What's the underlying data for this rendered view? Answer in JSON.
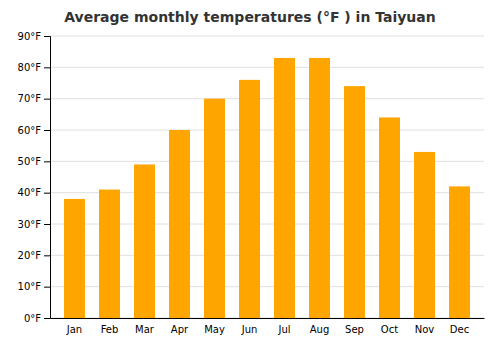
{
  "chart_data": {
    "type": "bar",
    "title": "Average monthly temperatures (°F ) in Taiyuan",
    "categories": [
      "Jan",
      "Feb",
      "Mar",
      "Apr",
      "May",
      "Jun",
      "Jul",
      "Aug",
      "Sep",
      "Oct",
      "Nov",
      "Dec"
    ],
    "values": [
      38,
      41,
      49,
      60,
      70,
      76,
      83,
      83,
      74,
      64,
      53,
      42
    ],
    "color": "#FFA500",
    "ylim": [
      0,
      90
    ],
    "yticks": [
      {
        "value": 0,
        "label": "0°F"
      },
      {
        "value": 10,
        "label": "10°F"
      },
      {
        "value": 20,
        "label": "20°F"
      },
      {
        "value": 30,
        "label": "30°F"
      },
      {
        "value": 40,
        "label": "40°F"
      },
      {
        "value": 50,
        "label": "50°F"
      },
      {
        "value": 60,
        "label": "60°F"
      },
      {
        "value": 70,
        "label": "70°F"
      },
      {
        "value": 80,
        "label": "80°F"
      },
      {
        "value": 90,
        "label": "90°F"
      }
    ],
    "grid": true
  }
}
